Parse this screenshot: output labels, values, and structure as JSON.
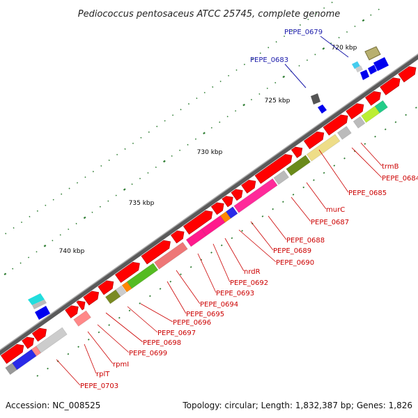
{
  "title": "Pediococcus pentosaceus ATCC 25745, complete genome",
  "footer": {
    "accession": "Accession: NC_008525",
    "summary": "Topology: circular; Length: 1,832,387 bp; Genes: 1,826"
  },
  "ruler_labels": [
    "720 kbp",
    "725 kbp",
    "730 kbp",
    "735 kbp",
    "740 kbp"
  ],
  "gene_labels_blue": [
    "PEPE_0679",
    "PEPE_0683"
  ],
  "gene_labels_red": [
    "trmB",
    "PEPE_0684",
    "PEPE_0685",
    "murC",
    "PEPE_0687",
    "PEPE_0688",
    "PEPE_0689",
    "PEPE_0690",
    "nrdR",
    "PEPE_0692",
    "PEPE_0693",
    "PEPE_0694",
    "PEPE_0695",
    "PEPE_0696",
    "PEPE_0697",
    "PEPE_0698",
    "PEPE_0699",
    "rpmI",
    "rplT",
    "PEPE_0703"
  ],
  "colors": {
    "backbone": "#6e6e6e",
    "cds_forward": "#ff0000",
    "cds_other": "#0000ff",
    "label_red": "#cc0000",
    "label_blue": "#1a1aaa",
    "tick": "#2e7d32"
  }
}
